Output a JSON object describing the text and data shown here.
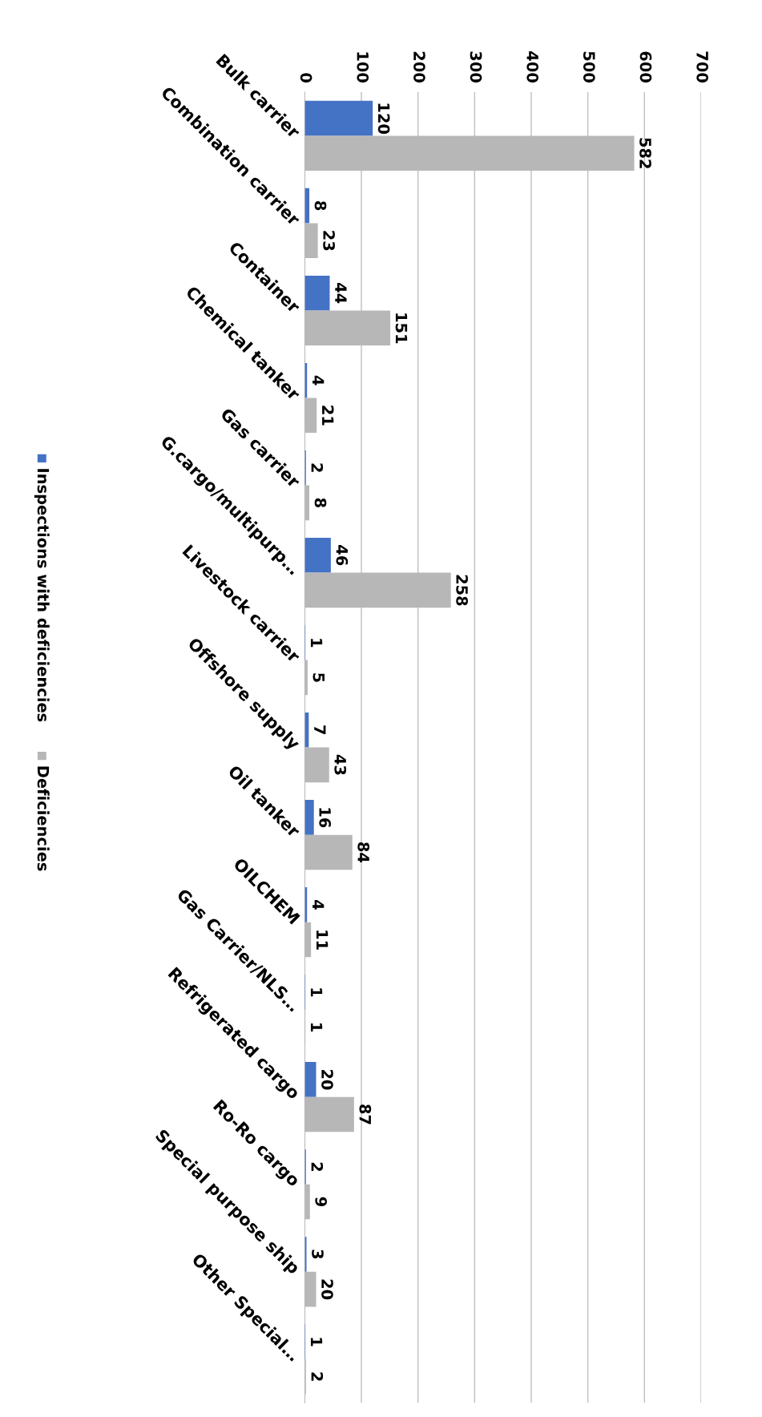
{
  "chart_data": {
    "type": "bar",
    "orientation": "horizontal",
    "categories": [
      "Bulk carrier",
      "Combination carrier",
      "Container",
      "Chemical tanker",
      "Gas carrier",
      "G.cargo/multipurp…",
      "Livestock carrier",
      "Offshore supply",
      "Oil tanker",
      "OILCHEM",
      "Gas Carrier/NLS…",
      "Refrigerated cargo",
      "Ro-Ro cargo",
      "Special purpose ship",
      "Other Special…"
    ],
    "series": [
      {
        "name": "Inspections with deficiencies",
        "color": "#4472c4",
        "values": [
          120,
          8,
          44,
          4,
          2,
          46,
          1,
          7,
          16,
          4,
          1,
          20,
          2,
          3,
          1
        ]
      },
      {
        "name": "Deficiencies",
        "color": "#b7b7b7",
        "values": [
          582,
          23,
          151,
          21,
          8,
          258,
          5,
          43,
          84,
          11,
          1,
          87,
          9,
          20,
          2
        ]
      }
    ],
    "xlim": [
      0,
      700
    ],
    "xticks": [
      0,
      100,
      200,
      300,
      400,
      500,
      600,
      700
    ],
    "grid": "x",
    "legend": "left",
    "data_labels": true
  }
}
